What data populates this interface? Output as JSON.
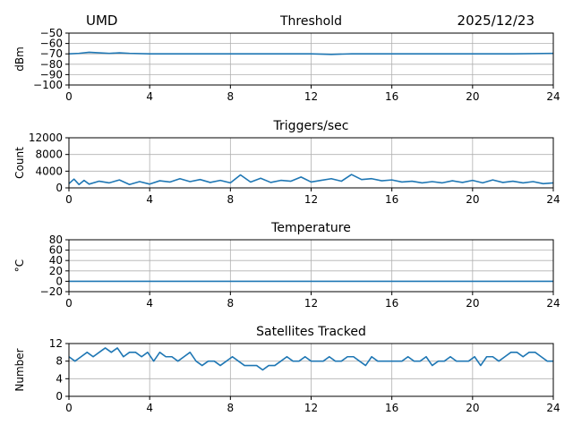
{
  "header": {
    "site": "UMD",
    "date": "2025/12/23"
  },
  "colors": {
    "line": "#1f77b4",
    "grid": "#b0b0b0",
    "axis": "#000000"
  },
  "chart_data": [
    {
      "type": "line",
      "title": "Threshold",
      "xlabel": "",
      "ylabel": "dBm",
      "xlim": [
        0,
        24
      ],
      "ylim": [
        -100,
        -50
      ],
      "xticks": [
        0,
        4,
        8,
        12,
        16,
        20,
        24
      ],
      "yticks": [
        -100,
        -90,
        -80,
        -70,
        -60,
        -50
      ],
      "grid": true,
      "series": [
        {
          "x": [
            0,
            0.5,
            1,
            1.5,
            2,
            2.5,
            3,
            4,
            6,
            8,
            10,
            12,
            13,
            14,
            16,
            18,
            20,
            22,
            24
          ],
          "y": [
            -70,
            -69.5,
            -68.5,
            -69,
            -69.5,
            -69,
            -69.5,
            -70,
            -70,
            -70,
            -70,
            -70,
            -70.5,
            -70,
            -70,
            -70,
            -70,
            -70,
            -69.5
          ]
        }
      ]
    },
    {
      "type": "line",
      "title": "Triggers/sec",
      "xlabel": "",
      "ylabel": "Count",
      "xlim": [
        0,
        24
      ],
      "ylim": [
        0,
        12000
      ],
      "xticks": [
        0,
        4,
        8,
        12,
        16,
        20,
        24
      ],
      "yticks": [
        0,
        4000,
        8000,
        12000
      ],
      "grid": true,
      "series": [
        {
          "x": [
            0,
            0.25,
            0.5,
            0.75,
            1,
            1.5,
            2,
            2.5,
            3,
            3.5,
            4,
            4.5,
            5,
            5.5,
            6,
            6.5,
            7,
            7.5,
            8,
            8.5,
            9,
            9.5,
            10,
            10.5,
            11,
            11.5,
            12,
            12.5,
            13,
            13.5,
            14,
            14.5,
            15,
            15.5,
            16,
            16.5,
            17,
            17.5,
            18,
            18.5,
            19,
            19.5,
            20,
            20.5,
            21,
            21.5,
            22,
            22.5,
            23,
            23.5,
            24
          ],
          "y": [
            1000,
            2100,
            800,
            1800,
            900,
            1600,
            1200,
            1900,
            800,
            1500,
            900,
            1700,
            1400,
            2200,
            1500,
            2000,
            1300,
            1800,
            1200,
            3100,
            1400,
            2300,
            1300,
            1800,
            1600,
            2600,
            1400,
            1800,
            2200,
            1600,
            3200,
            2000,
            2200,
            1700,
            1900,
            1400,
            1600,
            1200,
            1500,
            1200,
            1700,
            1300,
            1800,
            1200,
            1900,
            1300,
            1600,
            1200,
            1500,
            1000,
            1200
          ]
        }
      ]
    },
    {
      "type": "line",
      "title": "Temperature",
      "xlabel": "",
      "ylabel": "°C",
      "xlim": [
        0,
        24
      ],
      "ylim": [
        -20,
        80
      ],
      "xticks": [
        0,
        4,
        8,
        12,
        16,
        20,
        24
      ],
      "yticks": [
        -20,
        0,
        20,
        40,
        60,
        80
      ],
      "grid": true,
      "series": [
        {
          "x": [
            0,
            24
          ],
          "y": [
            0,
            0
          ]
        }
      ]
    },
    {
      "type": "line",
      "title": "Satellites Tracked",
      "xlabel": "",
      "ylabel": "Number",
      "xlim": [
        0,
        24
      ],
      "ylim": [
        0,
        12
      ],
      "xticks": [
        0,
        4,
        8,
        12,
        16,
        20,
        24
      ],
      "yticks": [
        0,
        4,
        8,
        12
      ],
      "grid": true,
      "series": [
        {
          "x": [
            0,
            0.3,
            0.6,
            0.9,
            1.2,
            1.5,
            1.8,
            2.1,
            2.4,
            2.7,
            3,
            3.3,
            3.6,
            3.9,
            4.2,
            4.5,
            4.8,
            5.1,
            5.4,
            5.7,
            6,
            6.3,
            6.6,
            6.9,
            7.2,
            7.5,
            7.8,
            8.1,
            8.4,
            8.7,
            9,
            9.3,
            9.6,
            9.9,
            10.2,
            10.5,
            10.8,
            11.1,
            11.4,
            11.7,
            12,
            12.3,
            12.6,
            12.9,
            13.2,
            13.5,
            13.8,
            14.1,
            14.4,
            14.7,
            15,
            15.3,
            15.6,
            15.9,
            16.2,
            16.5,
            16.8,
            17.1,
            17.4,
            17.7,
            18,
            18.3,
            18.6,
            18.9,
            19.2,
            19.5,
            19.8,
            20.1,
            20.4,
            20.7,
            21,
            21.3,
            21.6,
            21.9,
            22.2,
            22.5,
            22.8,
            23.1,
            23.4,
            23.7,
            24
          ],
          "y": [
            9,
            8,
            9,
            10,
            9,
            10,
            11,
            10,
            11,
            9,
            10,
            10,
            9,
            10,
            8,
            10,
            9,
            9,
            8,
            9,
            10,
            8,
            7,
            8,
            8,
            7,
            8,
            9,
            8,
            7,
            7,
            7,
            6,
            7,
            7,
            8,
            9,
            8,
            8,
            9,
            8,
            8,
            8,
            9,
            8,
            8,
            9,
            9,
            8,
            7,
            9,
            8,
            8,
            8,
            8,
            8,
            9,
            8,
            8,
            9,
            7,
            8,
            8,
            9,
            8,
            8,
            8,
            9,
            7,
            9,
            9,
            8,
            9,
            10,
            10,
            9,
            10,
            10,
            9,
            8,
            8
          ]
        }
      ]
    }
  ]
}
